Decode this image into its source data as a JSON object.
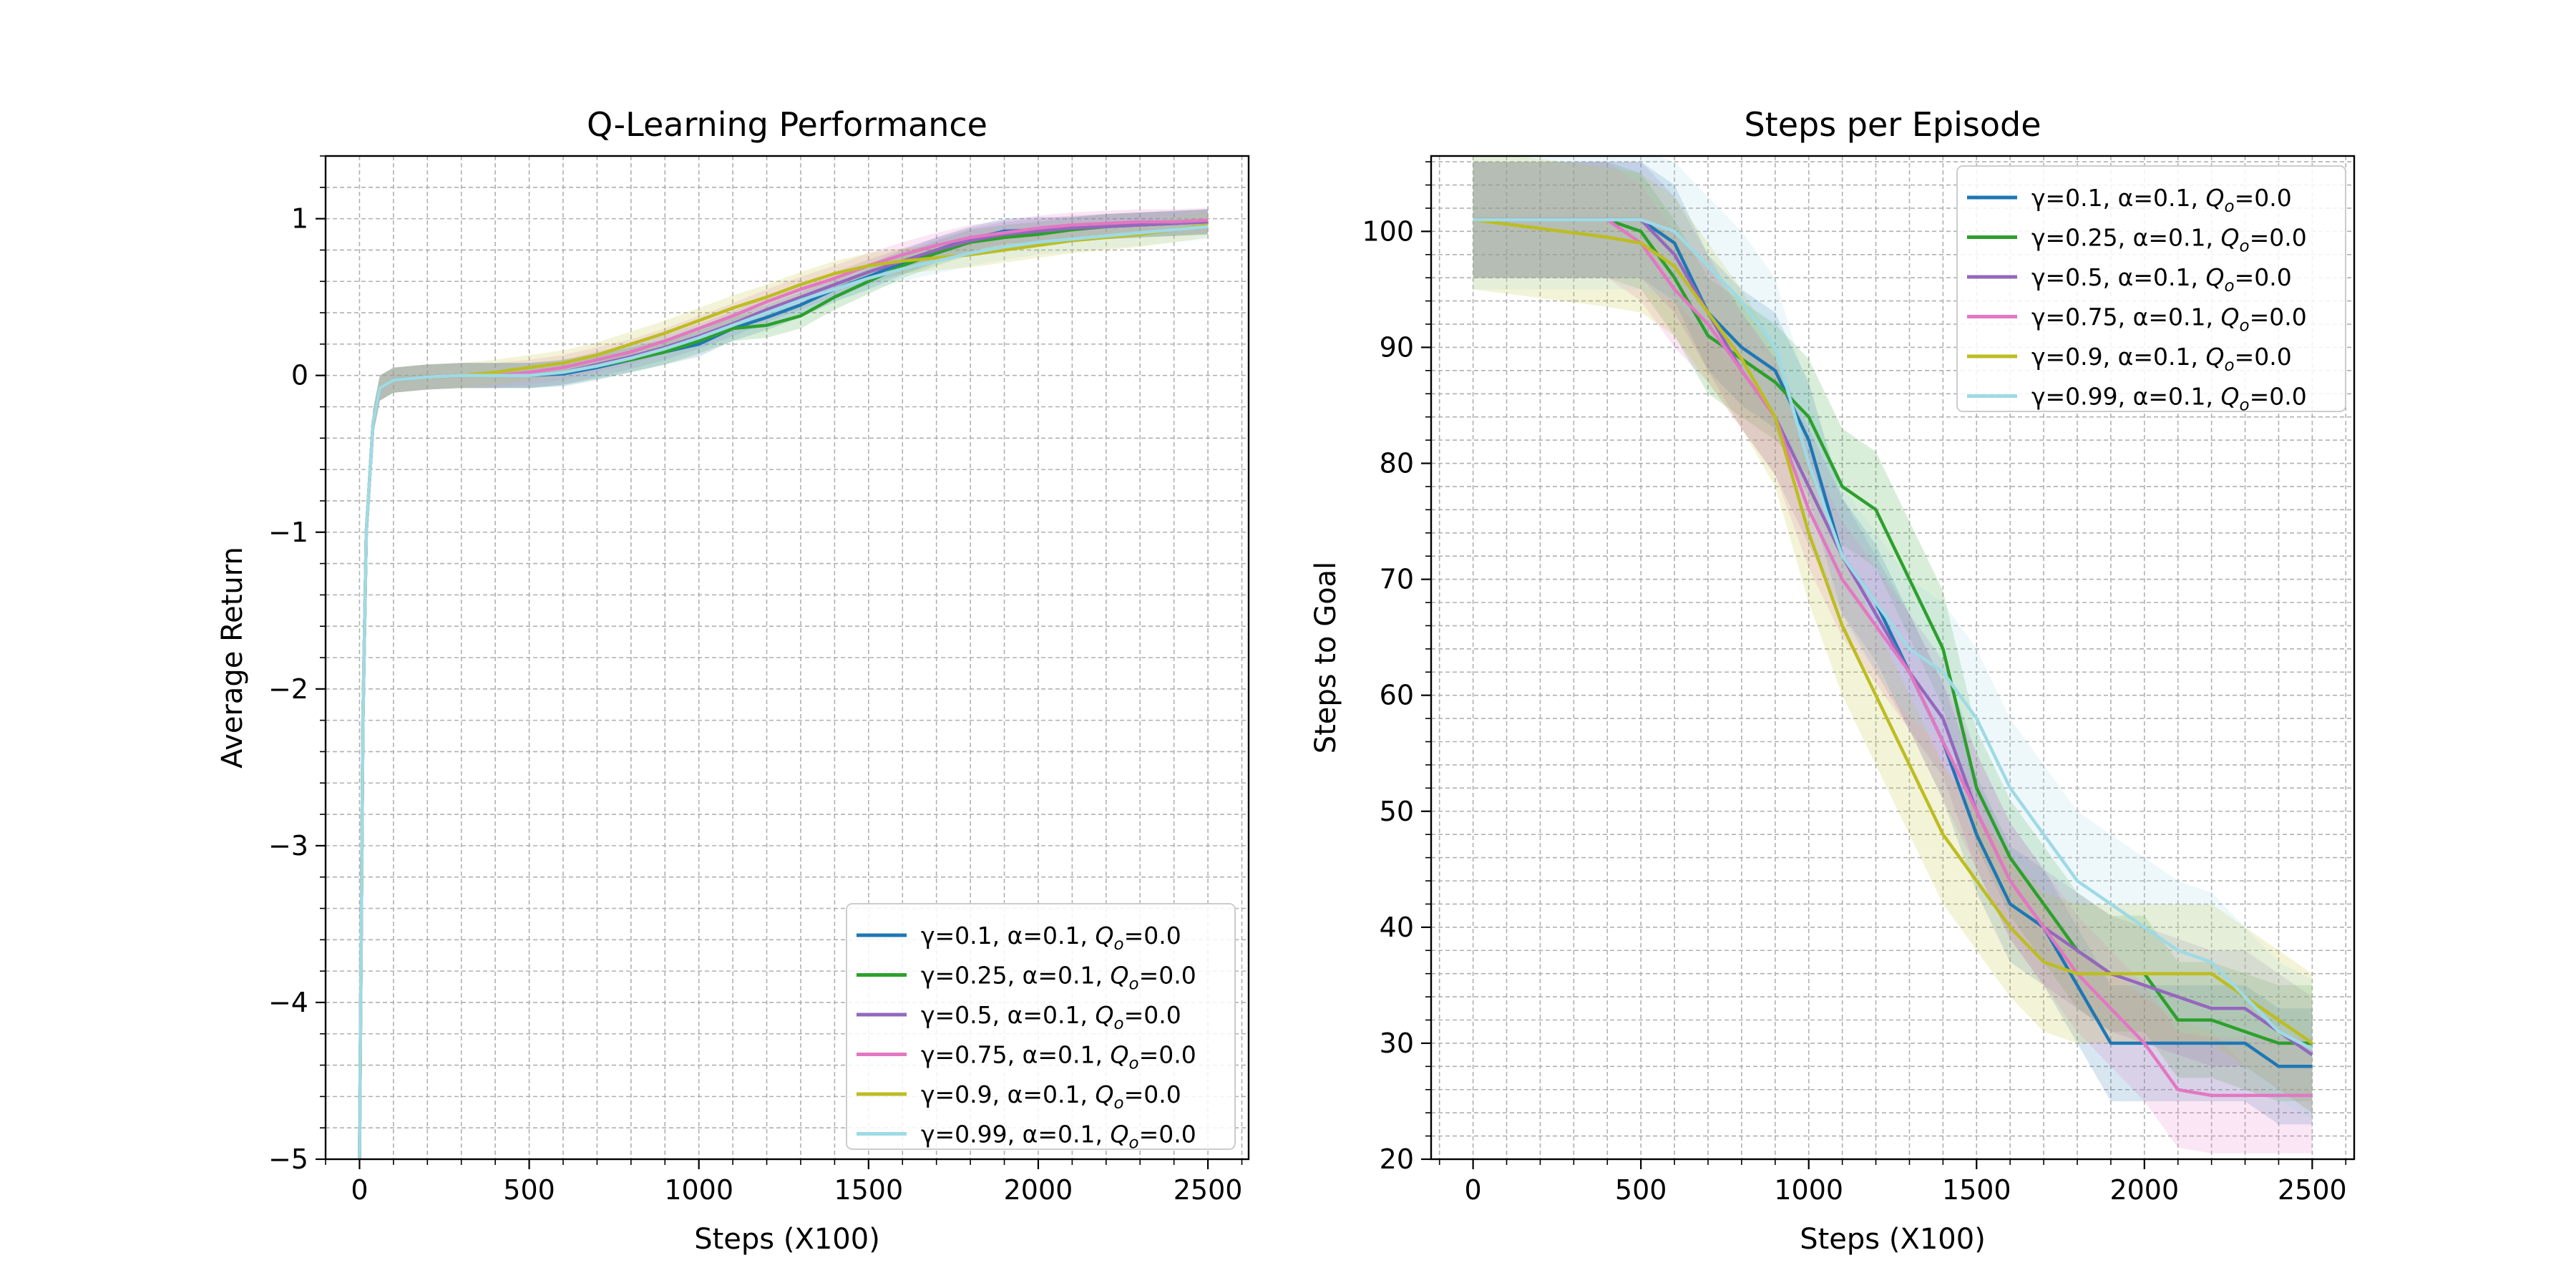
{
  "chart_data": [
    {
      "type": "line",
      "title": "Q-Learning Performance",
      "xlabel": "Steps (X100)",
      "ylabel": "Average Return",
      "xlim": [
        -100,
        2620
      ],
      "ylim": [
        -5,
        1.4
      ],
      "xticks": [
        0,
        500,
        1000,
        1500,
        2000,
        2500
      ],
      "yticks": [
        -5,
        -4,
        -3,
        -2,
        -1,
        0,
        1
      ],
      "xtick_labels": [
        "0",
        "500",
        "1000",
        "1500",
        "2000",
        "2500"
      ],
      "ytick_labels": [
        "−5",
        "−4",
        "−3",
        "−2",
        "−1",
        "0",
        "1"
      ],
      "grid": true,
      "legend_position": "lower-right",
      "shaded_band": true,
      "series": [
        {
          "name": "γ=0.1, α=0.1, Q_o=0.0",
          "color": "#1f77b4",
          "x": [
            0,
            10,
            20,
            40,
            60,
            100,
            200,
            300,
            400,
            500,
            600,
            700,
            800,
            900,
            1000,
            1100,
            1200,
            1300,
            1400,
            1500,
            1600,
            1700,
            1800,
            1900,
            2000,
            2100,
            2200,
            2300,
            2400,
            2500
          ],
          "y": [
            -5.0,
            -2.2,
            -1.0,
            -0.3,
            -0.08,
            -0.03,
            -0.01,
            0.0,
            0.0,
            0.0,
            0.01,
            0.05,
            0.1,
            0.15,
            0.2,
            0.3,
            0.37,
            0.45,
            0.55,
            0.63,
            0.72,
            0.8,
            0.87,
            0.92,
            0.93,
            0.93,
            0.95,
            0.96,
            0.97,
            0.98
          ],
          "band": 0.08
        },
        {
          "name": "γ=0.25, α=0.1, Q_o=0.0",
          "color": "#2ca02c",
          "x": [
            0,
            10,
            20,
            40,
            60,
            100,
            200,
            300,
            400,
            500,
            600,
            700,
            800,
            900,
            1000,
            1100,
            1200,
            1300,
            1400,
            1500,
            1600,
            1700,
            1800,
            1900,
            2000,
            2100,
            2200,
            2300,
            2400,
            2500
          ],
          "y": [
            -5.0,
            -2.2,
            -1.0,
            -0.3,
            -0.08,
            -0.03,
            -0.01,
            0.0,
            0.0,
            0.0,
            0.02,
            0.06,
            0.1,
            0.15,
            0.22,
            0.3,
            0.32,
            0.38,
            0.5,
            0.6,
            0.7,
            0.78,
            0.85,
            0.88,
            0.9,
            0.93,
            0.95,
            0.96,
            0.97,
            0.98
          ],
          "band": 0.08
        },
        {
          "name": "γ=0.5, α=0.1, Q_o=0.0",
          "color": "#9467bd",
          "x": [
            0,
            10,
            20,
            40,
            60,
            100,
            200,
            300,
            400,
            500,
            600,
            700,
            800,
            900,
            1000,
            1100,
            1200,
            1300,
            1400,
            1500,
            1600,
            1700,
            1800,
            1900,
            2000,
            2100,
            2200,
            2300,
            2400,
            2500
          ],
          "y": [
            -5.0,
            -2.2,
            -1.0,
            -0.3,
            -0.08,
            -0.03,
            -0.01,
            0.0,
            0.0,
            0.0,
            0.02,
            0.07,
            0.12,
            0.18,
            0.25,
            0.33,
            0.42,
            0.5,
            0.58,
            0.66,
            0.73,
            0.8,
            0.86,
            0.9,
            0.92,
            0.94,
            0.95,
            0.96,
            0.97,
            0.98
          ],
          "band": 0.08
        },
        {
          "name": "γ=0.75, α=0.1, Q_o=0.0",
          "color": "#e377c2",
          "x": [
            0,
            10,
            20,
            40,
            60,
            100,
            200,
            300,
            400,
            500,
            600,
            700,
            800,
            900,
            1000,
            1100,
            1200,
            1300,
            1400,
            1500,
            1600,
            1700,
            1800,
            1900,
            2000,
            2100,
            2200,
            2300,
            2400,
            2500
          ],
          "y": [
            -5.0,
            -2.2,
            -1.0,
            -0.3,
            -0.08,
            -0.03,
            -0.01,
            0.0,
            0.0,
            0.02,
            0.05,
            0.1,
            0.15,
            0.22,
            0.3,
            0.38,
            0.47,
            0.55,
            0.62,
            0.7,
            0.77,
            0.83,
            0.88,
            0.91,
            0.94,
            0.96,
            0.97,
            0.98,
            0.98,
            0.99
          ],
          "band": 0.08
        },
        {
          "name": "γ=0.9, α=0.1, Q_o=0.0",
          "color": "#bcbd22",
          "x": [
            0,
            10,
            20,
            40,
            60,
            100,
            200,
            300,
            400,
            500,
            600,
            700,
            800,
            900,
            1000,
            1100,
            1200,
            1300,
            1400,
            1500,
            1600,
            1700,
            1800,
            1900,
            2000,
            2100,
            2200,
            2300,
            2400,
            2500
          ],
          "y": [
            -5.0,
            -2.2,
            -1.0,
            -0.3,
            -0.08,
            -0.03,
            -0.01,
            0.0,
            0.02,
            0.05,
            0.08,
            0.13,
            0.2,
            0.27,
            0.35,
            0.43,
            0.5,
            0.58,
            0.65,
            0.7,
            0.73,
            0.75,
            0.77,
            0.8,
            0.83,
            0.86,
            0.88,
            0.9,
            0.93,
            0.96
          ],
          "band": 0.08
        },
        {
          "name": "γ=0.99, α=0.1, Q_o=0.0",
          "color": "#9edae5",
          "x": [
            0,
            10,
            20,
            40,
            60,
            100,
            200,
            300,
            400,
            500,
            600,
            700,
            800,
            900,
            1000,
            1100,
            1200,
            1300,
            1400,
            1500,
            1600,
            1700,
            1800,
            1900,
            2000,
            2100,
            2200,
            2300,
            2400,
            2500
          ],
          "y": [
            -5.0,
            -2.2,
            -1.0,
            -0.3,
            -0.08,
            -0.03,
            -0.01,
            0.0,
            0.0,
            0.0,
            0.02,
            0.06,
            0.11,
            0.17,
            0.24,
            0.32,
            0.4,
            0.48,
            0.55,
            0.62,
            0.68,
            0.73,
            0.78,
            0.82,
            0.85,
            0.87,
            0.89,
            0.91,
            0.93,
            0.95
          ],
          "band": 0.08
        }
      ]
    },
    {
      "type": "line",
      "title": "Steps per Episode",
      "xlabel": "Steps (X100)",
      "ylabel": "Steps to Goal",
      "xlim": [
        -125,
        2625
      ],
      "ylim": [
        20,
        106.5
      ],
      "xticks": [
        0,
        500,
        1000,
        1500,
        2000,
        2500
      ],
      "yticks": [
        20,
        30,
        40,
        50,
        60,
        70,
        80,
        90,
        100
      ],
      "xtick_labels": [
        "0",
        "500",
        "1000",
        "1500",
        "2000",
        "2500"
      ],
      "ytick_labels": [
        "20",
        "30",
        "40",
        "50",
        "60",
        "70",
        "80",
        "90",
        "100"
      ],
      "grid": true,
      "legend_position": "upper-right",
      "shaded_band": true,
      "series": [
        {
          "name": "γ=0.1, α=0.1, Q_o=0.0",
          "color": "#1f77b4",
          "x": [
            0,
            400,
            500,
            600,
            700,
            800,
            900,
            1000,
            1100,
            1200,
            1300,
            1400,
            1500,
            1600,
            1700,
            1800,
            1900,
            2000,
            2100,
            2200,
            2300,
            2400,
            2500
          ],
          "y": [
            101,
            101,
            101,
            99,
            93,
            90,
            88,
            82,
            72,
            68,
            62,
            56,
            48,
            42,
            40,
            35,
            30,
            30,
            30,
            30,
            30,
            28,
            28
          ],
          "band": 5
        },
        {
          "name": "γ=0.25, α=0.1, Q_o=0.0",
          "color": "#2ca02c",
          "x": [
            0,
            400,
            500,
            600,
            700,
            800,
            900,
            1000,
            1100,
            1200,
            1300,
            1400,
            1500,
            1600,
            1700,
            1800,
            1900,
            2000,
            2100,
            2200,
            2300,
            2400,
            2500
          ],
          "y": [
            101,
            101,
            100,
            96,
            91,
            89,
            87,
            84,
            78,
            76,
            70,
            64,
            52,
            46,
            42,
            38,
            36,
            36,
            32,
            32,
            31,
            30,
            30
          ],
          "band": 5
        },
        {
          "name": "γ=0.5, α=0.1, Q_o=0.0",
          "color": "#9467bd",
          "x": [
            0,
            400,
            500,
            600,
            700,
            800,
            900,
            1000,
            1100,
            1200,
            1300,
            1400,
            1500,
            1600,
            1700,
            1800,
            1900,
            2000,
            2100,
            2200,
            2300,
            2400,
            2500
          ],
          "y": [
            101,
            101,
            101,
            98,
            93,
            88,
            84,
            78,
            72,
            67,
            62,
            58,
            50,
            44,
            40,
            38,
            36,
            35,
            34,
            33,
            33,
            31,
            29
          ],
          "band": 5
        },
        {
          "name": "γ=0.75, α=0.1, Q_o=0.0",
          "color": "#e377c2",
          "x": [
            0,
            400,
            500,
            600,
            700,
            800,
            900,
            1000,
            1100,
            1200,
            1300,
            1400,
            1500,
            1600,
            1700,
            1800,
            1900,
            2000,
            2100,
            2200,
            2300,
            2400,
            2500
          ],
          "y": [
            101,
            101,
            99,
            95,
            92,
            88,
            84,
            76,
            70,
            66,
            62,
            56,
            50,
            44,
            40,
            36,
            33,
            30,
            26,
            25.5,
            25.5,
            25.5,
            25.5
          ],
          "band": 5
        },
        {
          "name": "γ=0.9, α=0.1, Q_o=0.0",
          "color": "#bcbd22",
          "x": [
            0,
            400,
            500,
            600,
            700,
            800,
            900,
            1000,
            1100,
            1200,
            1300,
            1400,
            1500,
            1600,
            1700,
            1800,
            1900,
            2000,
            2100,
            2200,
            2300,
            2400,
            2500
          ],
          "y": [
            101,
            99.5,
            99,
            97,
            93,
            89,
            84,
            74,
            66,
            60,
            54,
            48,
            44,
            40,
            37,
            36,
            36,
            36,
            36,
            36,
            34,
            32,
            30
          ],
          "band": 6
        },
        {
          "name": "γ=0.99, α=0.1, Q_o=0.0",
          "color": "#9edae5",
          "x": [
            0,
            400,
            500,
            600,
            700,
            800,
            900,
            1000,
            1100,
            1200,
            1300,
            1400,
            1500,
            1600,
            1700,
            1800,
            1900,
            2000,
            2100,
            2200,
            2300,
            2400,
            2500
          ],
          "y": [
            101,
            101,
            101,
            100,
            97,
            94,
            90,
            80,
            72,
            68,
            64,
            62,
            58,
            52,
            48,
            44,
            42,
            40,
            38,
            37,
            34,
            31,
            29.5
          ],
          "band": 6
        }
      ]
    }
  ]
}
